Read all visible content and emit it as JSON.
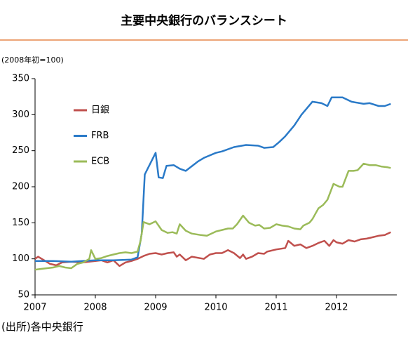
{
  "chart_data": {
    "type": "line",
    "title": "主要中央銀行のバランスシート",
    "y_label": "(2008年初=100)",
    "source": "(出所)各中央銀行",
    "xlim": [
      2007,
      2013
    ],
    "xticks": [
      2007,
      2008,
      2009,
      2010,
      2011,
      2012
    ],
    "ylim": [
      50,
      350
    ],
    "yticks": [
      50,
      100,
      150,
      200,
      250,
      300,
      350
    ],
    "grid": false,
    "series": [
      {
        "name": "日銀",
        "color": "#c0504d",
        "x": [
          2007,
          2007.05,
          2007.15,
          2007.25,
          2007.35,
          2007.45,
          2007.6,
          2007.8,
          2008,
          2008.1,
          2008.2,
          2008.3,
          2008.4,
          2008.5,
          2008.6,
          2008.7,
          2008.8,
          2008.9,
          2009,
          2009.1,
          2009.2,
          2009.3,
          2009.35,
          2009.4,
          2009.5,
          2009.6,
          2009.8,
          2009.9,
          2010,
          2010.1,
          2010.2,
          2010.3,
          2010.4,
          2010.45,
          2010.5,
          2010.6,
          2010.7,
          2010.8,
          2010.85,
          2011,
          2011.15,
          2011.2,
          2011.3,
          2011.4,
          2011.5,
          2011.6,
          2011.7,
          2011.8,
          2011.88,
          2011.95,
          2012,
          2012.1,
          2012.2,
          2012.3,
          2012.4,
          2012.5,
          2012.6,
          2012.7,
          2012.8,
          2012.9
        ],
        "values": [
          100,
          103,
          98,
          93,
          91,
          95,
          96,
          95,
          97,
          98,
          95,
          98,
          90,
          95,
          97,
          100,
          104,
          107,
          108,
          106,
          108,
          109,
          103,
          106,
          98,
          103,
          100,
          106,
          108,
          108,
          112,
          108,
          101,
          106,
          100,
          103,
          108,
          107,
          110,
          113,
          115,
          125,
          118,
          120,
          115,
          118,
          122,
          125,
          118,
          126,
          123,
          121,
          126,
          124,
          127,
          128,
          130,
          132,
          133,
          137
        ]
      },
      {
        "name": "FRB",
        "color": "#2a7ac8",
        "x": [
          2007,
          2007.3,
          2007.6,
          2008,
          2008.3,
          2008.6,
          2008.7,
          2008.77,
          2008.82,
          2009,
          2009.05,
          2009.12,
          2009.18,
          2009.3,
          2009.4,
          2009.5,
          2009.7,
          2009.8,
          2010,
          2010.1,
          2010.3,
          2010.5,
          2010.7,
          2010.8,
          2010.95,
          2011.05,
          2011.15,
          2011.3,
          2011.42,
          2011.6,
          2011.75,
          2011.85,
          2011.92,
          2012.1,
          2012.25,
          2012.45,
          2012.55,
          2012.7,
          2012.8,
          2012.9
        ],
        "values": [
          97,
          97,
          96,
          98,
          98,
          99,
          102,
          135,
          217,
          247,
          213,
          212,
          229,
          230,
          225,
          222,
          235,
          240,
          247,
          249,
          255,
          258,
          257,
          254,
          255,
          262,
          270,
          285,
          300,
          318,
          316,
          312,
          324,
          324,
          318,
          315,
          316,
          312,
          312,
          315
        ]
      },
      {
        "name": "ECB",
        "color": "#9bbb59",
        "x": [
          2007,
          2007.1,
          2007.2,
          2007.3,
          2007.4,
          2007.5,
          2007.6,
          2007.7,
          2007.8,
          2007.9,
          2007.93,
          2008,
          2008.1,
          2008.2,
          2008.3,
          2008.4,
          2008.5,
          2008.6,
          2008.7,
          2008.75,
          2008.8,
          2008.9,
          2009,
          2009.1,
          2009.2,
          2009.28,
          2009.35,
          2009.4,
          2009.5,
          2009.6,
          2009.75,
          2009.85,
          2010,
          2010.1,
          2010.2,
          2010.28,
          2010.35,
          2010.45,
          2010.55,
          2010.65,
          2010.72,
          2010.8,
          2010.9,
          2011,
          2011.1,
          2011.2,
          2011.3,
          2011.4,
          2011.45,
          2011.55,
          2011.6,
          2011.7,
          2011.78,
          2011.85,
          2011.95,
          2012.05,
          2012.1,
          2012.2,
          2012.28,
          2012.35,
          2012.45,
          2012.55,
          2012.65,
          2012.75,
          2012.85,
          2012.9
        ],
        "values": [
          85,
          86,
          87,
          88,
          90,
          88,
          87,
          93,
          95,
          100,
          112,
          100,
          101,
          104,
          106,
          108,
          109,
          108,
          110,
          125,
          151,
          148,
          152,
          140,
          136,
          137,
          135,
          148,
          139,
          135,
          133,
          132,
          138,
          140,
          142,
          142,
          148,
          160,
          150,
          146,
          147,
          142,
          143,
          148,
          146,
          145,
          142,
          141,
          146,
          150,
          155,
          170,
          175,
          182,
          204,
          200,
          200,
          222,
          222,
          223,
          232,
          230,
          230,
          228,
          227,
          226
        ]
      }
    ]
  }
}
